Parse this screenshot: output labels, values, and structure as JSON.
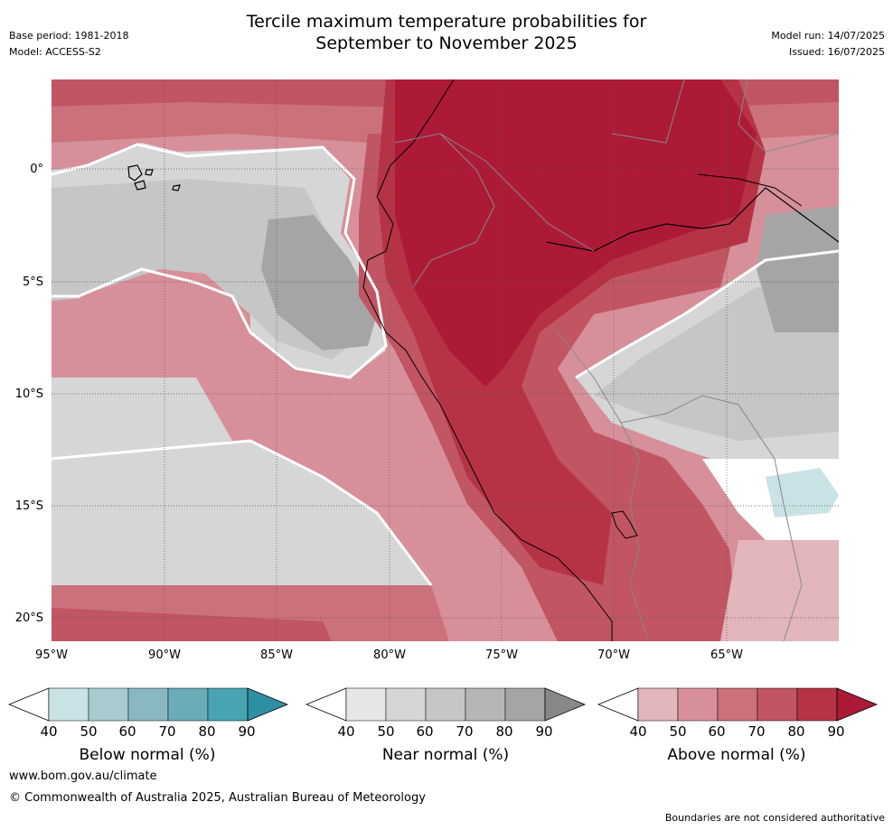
{
  "header": {
    "title_line1": "Tercile maximum temperature probabilities for",
    "title_line2": "September to November 2025",
    "base_period": "Base period: 1981-2018",
    "model": "Model: ACCESS-S2",
    "model_run": "Model run: 14/07/2025",
    "issued": "Issued: 16/07/2025"
  },
  "axes": {
    "lat_labels": [
      "0°",
      "5°S",
      "10°S",
      "15°S",
      "20°S"
    ],
    "lon_labels": [
      "95°W",
      "90°W",
      "85°W",
      "80°W",
      "75°W",
      "70°W",
      "65°W"
    ]
  },
  "colorbars": [
    {
      "label": "Below normal (%)",
      "ticks": [
        "40",
        "50",
        "60",
        "70",
        "80",
        "90"
      ],
      "colors": [
        "#ffffff",
        "#c9e2e6",
        "#a8cbd0",
        "#88b8c2",
        "#6aacb8",
        "#48a3b2",
        "#2e8fa3"
      ]
    },
    {
      "label": "Near normal (%)",
      "ticks": [
        "40",
        "50",
        "60",
        "70",
        "80",
        "90"
      ],
      "colors": [
        "#ffffff",
        "#e6e6e6",
        "#d6d6d6",
        "#c6c6c6",
        "#b6b6b6",
        "#a5a5a5",
        "#888888"
      ]
    },
    {
      "label": "Above normal (%)",
      "ticks": [
        "40",
        "50",
        "60",
        "70",
        "80",
        "90"
      ],
      "colors": [
        "#ffffff",
        "#e2b6bb",
        "#d79099",
        "#cb717c",
        "#c15563",
        "#b63346",
        "#ad1a38"
      ]
    }
  ],
  "footer": {
    "website": "www.bom.gov.au/climate",
    "copyright": "© Commonwealth of Australia 2025, Australian Bureau of Meteorology",
    "disclaimer": "Boundaries are not considered authoritative"
  }
}
